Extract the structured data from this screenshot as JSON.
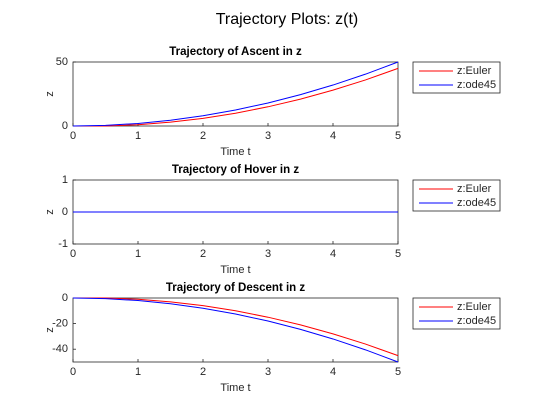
{
  "title": "Trajectory Plots: z(t)",
  "chart_data": [
    {
      "type": "line",
      "title": "Trajectory of Ascent in z",
      "xlabel": "Time t",
      "ylabel": "z",
      "x": [
        0,
        0.5,
        1,
        1.5,
        2,
        2.5,
        3,
        3.5,
        4,
        4.5,
        5
      ],
      "series": [
        {
          "name": "z:Euler",
          "color": "#ff0000",
          "values": [
            0,
            0,
            1,
            3,
            6,
            10,
            15,
            21,
            28,
            36,
            45
          ]
        },
        {
          "name": "z:ode45",
          "color": "#0000ff",
          "values": [
            0,
            0.5,
            2,
            4.5,
            8,
            12.5,
            18,
            24.5,
            32,
            40.5,
            50
          ]
        }
      ],
      "xlim": [
        0,
        5
      ],
      "ylim": [
        0,
        50
      ],
      "xticks": [
        0,
        1,
        2,
        3,
        4,
        5
      ],
      "yticks": [
        0,
        50
      ],
      "legend": "northeastoutside"
    },
    {
      "type": "line",
      "title": "Trajectory of Hover in z",
      "xlabel": "Time t",
      "ylabel": "z",
      "x": [
        0,
        0.5,
        1,
        1.5,
        2,
        2.5,
        3,
        3.5,
        4,
        4.5,
        5
      ],
      "series": [
        {
          "name": "z:Euler",
          "color": "#ff0000",
          "values": [
            0,
            0,
            0,
            0,
            0,
            0,
            0,
            0,
            0,
            0,
            0
          ]
        },
        {
          "name": "z:ode45",
          "color": "#0000ff",
          "values": [
            0,
            0,
            0,
            0,
            0,
            0,
            0,
            0,
            0,
            0,
            0
          ]
        }
      ],
      "xlim": [
        0,
        5
      ],
      "ylim": [
        -1,
        1
      ],
      "xticks": [
        0,
        1,
        2,
        3,
        4,
        5
      ],
      "yticks": [
        -1,
        0,
        1
      ],
      "legend": "northeastoutside"
    },
    {
      "type": "line",
      "title": "Trajectory of Descent in z",
      "xlabel": "Time t",
      "ylabel": "z",
      "x": [
        0,
        0.5,
        1,
        1.5,
        2,
        2.5,
        3,
        3.5,
        4,
        4.5,
        5
      ],
      "series": [
        {
          "name": "z:Euler",
          "color": "#ff0000",
          "values": [
            0,
            0,
            -1,
            -3,
            -6,
            -10,
            -15,
            -21,
            -28,
            -36,
            -45
          ]
        },
        {
          "name": "z:ode45",
          "color": "#0000ff",
          "values": [
            0,
            -0.5,
            -2,
            -4.5,
            -8,
            -12.5,
            -18,
            -24.5,
            -32,
            -40.5,
            -50
          ]
        }
      ],
      "xlim": [
        0,
        5
      ],
      "ylim": [
        -50,
        0
      ],
      "xticks": [
        0,
        1,
        2,
        3,
        4,
        5
      ],
      "yticks": [
        -40,
        -20,
        0
      ],
      "legend": "northeastoutside"
    }
  ]
}
